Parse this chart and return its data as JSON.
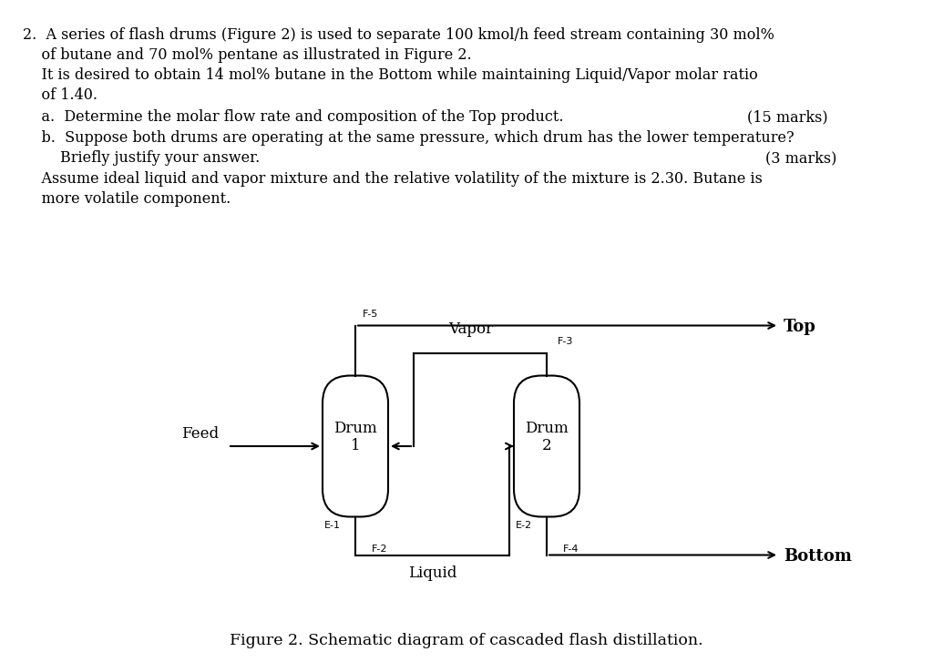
{
  "background_color": "#ffffff",
  "text_color": "#000000",
  "figure_caption": "Figure 2. Schematic diagram of cascaded flash distillation.",
  "drum1_label": "Drum\n1",
  "drum2_label": "Drum\n2",
  "feed_label": "Feed",
  "vapor_label": "Vapor",
  "liquid_label": "Liquid",
  "top_label": "Top",
  "bottom_label": "Bottom",
  "f5_label": "F-5",
  "f2_label": "F-2",
  "f3_label": "F-3",
  "f4_label": "F-4",
  "e1_label": "E-1",
  "e2_label": "E-2",
  "line_color": "#000000"
}
